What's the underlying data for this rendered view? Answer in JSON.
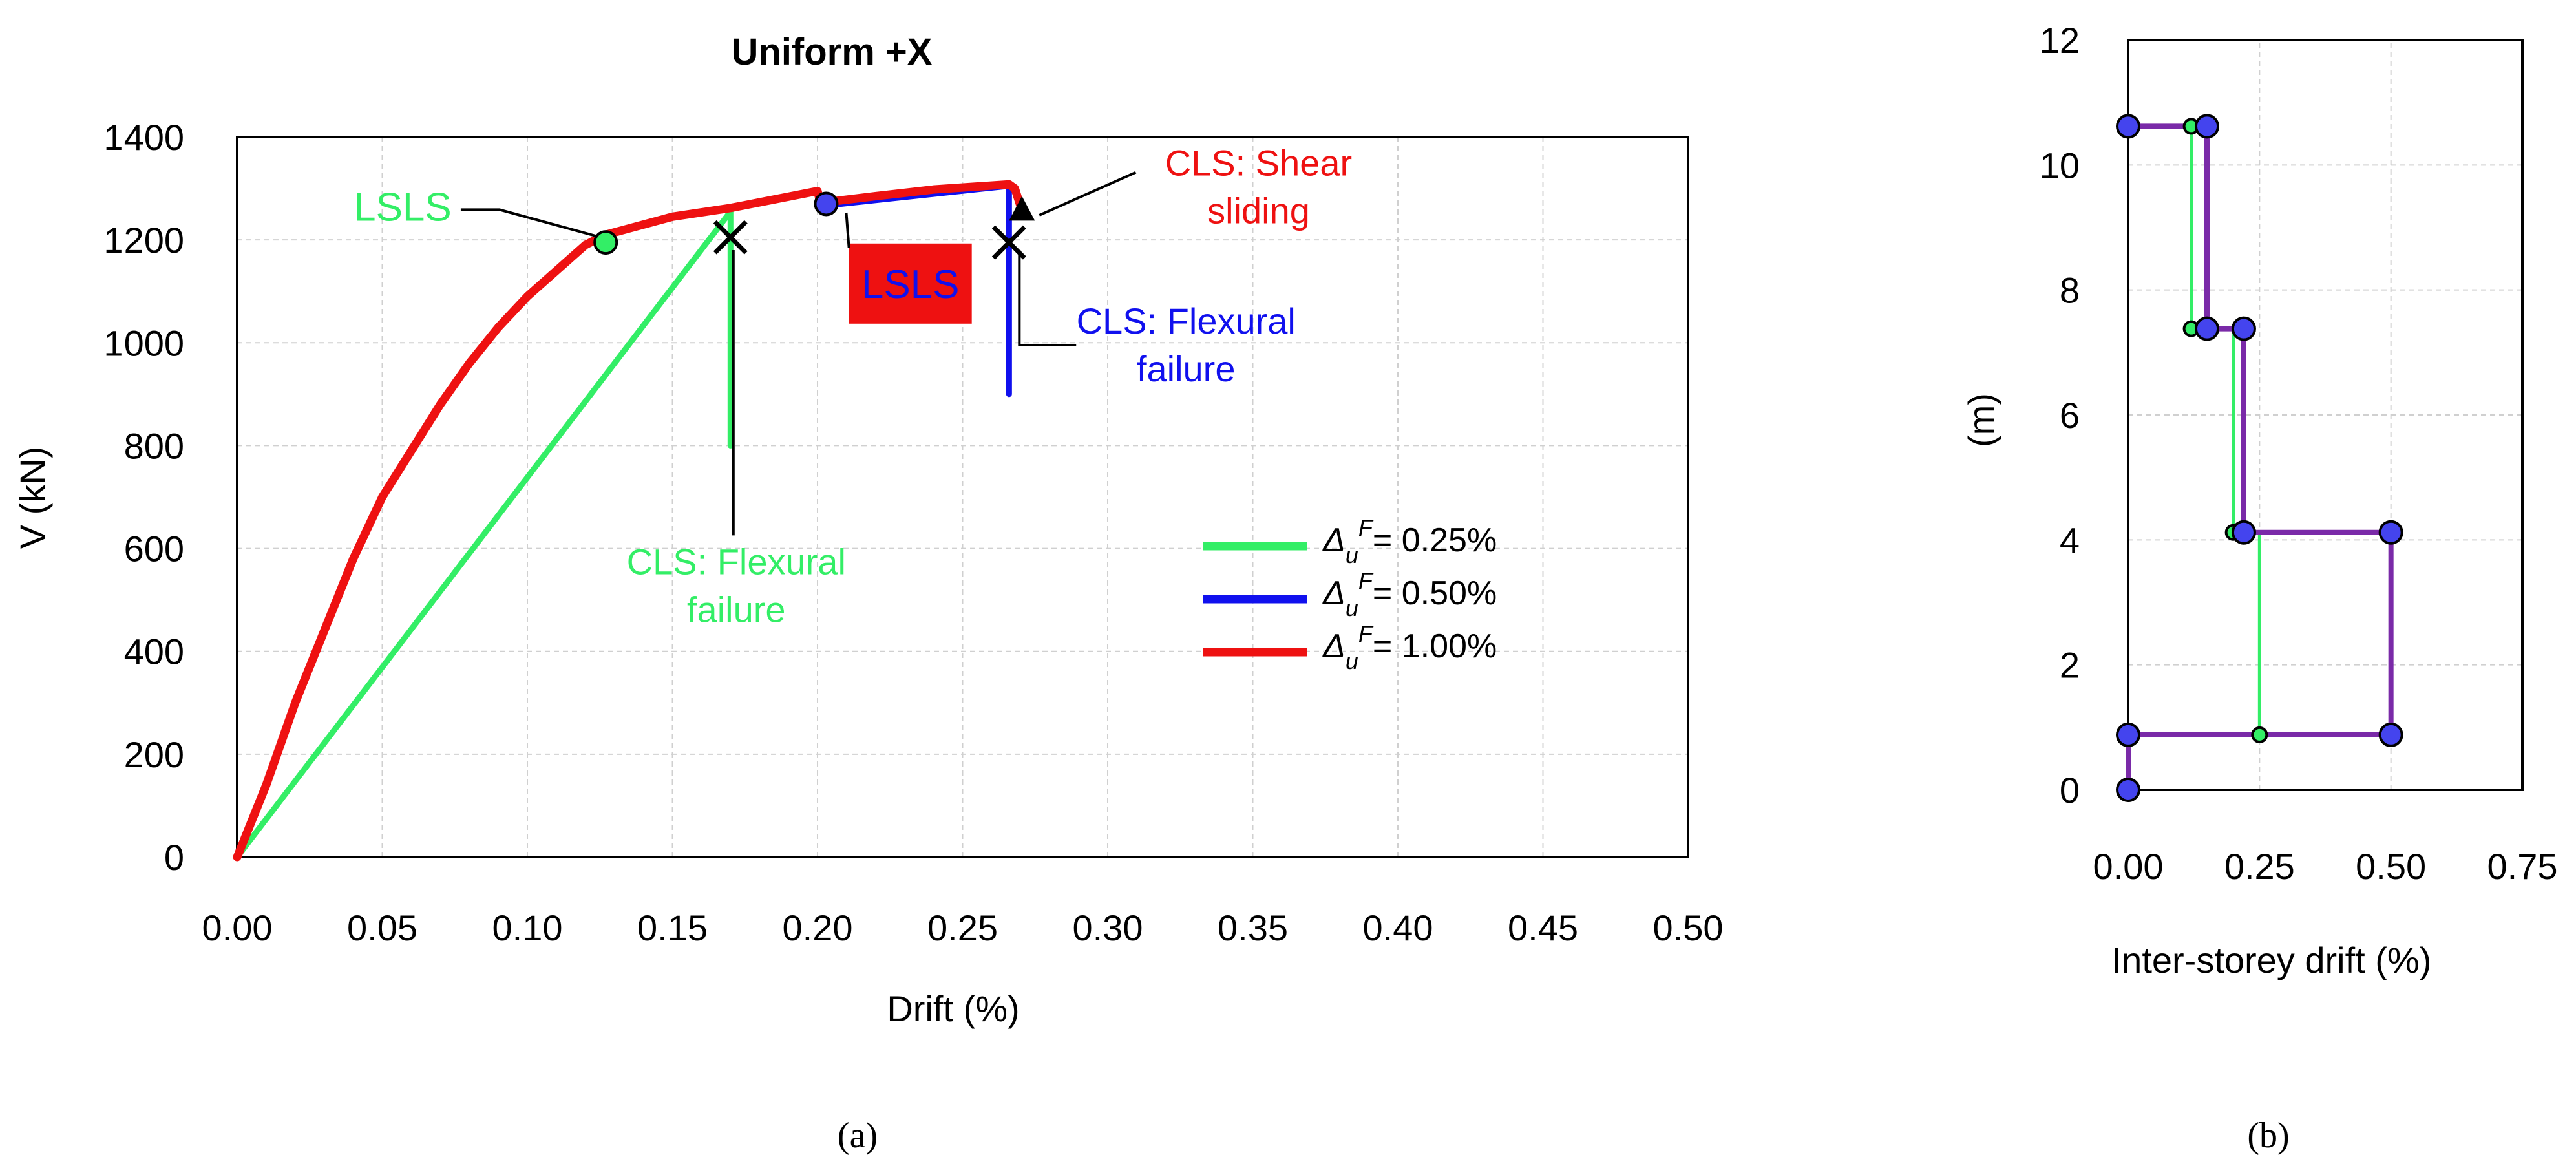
{
  "captions": {
    "a": "(a)",
    "b": "(b)"
  },
  "colors": {
    "green": "#33ee66",
    "blue": "#1010ee",
    "red": "#ee1111",
    "black": "#000000",
    "grid": "#d0d0d0",
    "purple": "#7a2aa8",
    "marker_blue": "#4444ee"
  },
  "chart_data": [
    {
      "type": "line",
      "title": "Uniform +X",
      "xlabel": "Drift (%)",
      "ylabel": "V (kN)",
      "xlim": [
        0,
        0.5
      ],
      "ylim": [
        0,
        1400
      ],
      "xticks": [
        "0.00",
        "0.05",
        "0.10",
        "0.15",
        "0.20",
        "0.25",
        "0.30",
        "0.35",
        "0.40",
        "0.45",
        "0.50"
      ],
      "yticks": [
        "0",
        "200",
        "400",
        "600",
        "800",
        "1000",
        "1200",
        "1400"
      ],
      "grid": true,
      "legend_position": "right",
      "legend": [
        {
          "symbol": "Δ",
          "sub": "u",
          "sup": "F",
          "value": "= 0.25%",
          "color": "#33ee66"
        },
        {
          "symbol": "Δ",
          "sub": "u",
          "sup": "F",
          "value": "= 0.50%",
          "color": "#1010ee"
        },
        {
          "symbol": "Δ",
          "sub": "u",
          "sup": "F",
          "value": "= 1.00%",
          "color": "#ee1111"
        }
      ],
      "series": [
        {
          "color": "#33ee66",
          "points": [
            [
              0,
              0
            ],
            [
              0.17,
              1255
            ],
            [
              0.17,
              800
            ]
          ]
        },
        {
          "color": "#1010ee",
          "points": [
            [
              0.2,
              1290
            ],
            [
              0.202,
              1272
            ],
            [
              0.205,
              1268
            ],
            [
              0.266,
              1305
            ],
            [
              0.266,
              900
            ]
          ]
        },
        {
          "color": "#ee1111",
          "points": [
            [
              0,
              0
            ],
            [
              0.01,
              140
            ],
            [
              0.02,
              300
            ],
            [
              0.03,
              440
            ],
            [
              0.04,
              580
            ],
            [
              0.05,
              700
            ],
            [
              0.06,
              790
            ],
            [
              0.07,
              880
            ],
            [
              0.08,
              960
            ],
            [
              0.09,
              1030
            ],
            [
              0.1,
              1090
            ],
            [
              0.11,
              1140
            ],
            [
              0.12,
              1190
            ],
            [
              0.127,
              1210
            ],
            [
              0.15,
              1245
            ],
            [
              0.17,
              1262
            ],
            [
              0.2,
              1295
            ],
            [
              0.201,
              1272
            ],
            [
              0.22,
              1285
            ],
            [
              0.24,
              1298
            ],
            [
              0.266,
              1308
            ],
            [
              0.268,
              1300
            ],
            [
              0.27,
              1265
            ]
          ]
        }
      ],
      "markers": [
        {
          "x": 0.127,
          "y": 1195,
          "shape": "circle",
          "color": "#33ee66"
        },
        {
          "x": 0.203,
          "y": 1270,
          "shape": "circle",
          "color": "#4444ee"
        },
        {
          "x": 0.17,
          "y": 1205,
          "shape": "cross"
        },
        {
          "x": 0.266,
          "y": 1195,
          "shape": "cross"
        },
        {
          "x": 0.27,
          "y": 1255,
          "shape": "triangle"
        }
      ],
      "annotations": [
        {
          "text": "LSLS",
          "color": "#33ee66",
          "x": 0.057,
          "y": 1265,
          "target": [
            0.127,
            1195
          ]
        },
        {
          "text": "LSLS",
          "color": "#1010ee",
          "x": 0.232,
          "y": 1115,
          "box": "#ee1111",
          "target": [
            0.205,
            1268
          ]
        },
        {
          "lines": [
            "CLS: Shear",
            "sliding"
          ],
          "color": "#ee1111",
          "x": 0.352,
          "y": 1325,
          "target": [
            0.272,
            1248
          ]
        },
        {
          "lines": [
            "CLS: Flexural",
            "failure"
          ],
          "color": "#1010ee",
          "x": 0.327,
          "y": 1018,
          "target": [
            0.266,
            1000
          ]
        },
        {
          "lines": [
            "CLS: Flexural",
            "failure"
          ],
          "color": "#33ee66",
          "x": 0.172,
          "y": 550,
          "target": [
            0.171,
            800
          ]
        }
      ]
    },
    {
      "type": "line",
      "xlabel": "Inter-storey drift (%)",
      "ylabel": "(m)",
      "xlim": [
        0,
        0.75
      ],
      "ylim": [
        0,
        12
      ],
      "xticks": [
        "0.00",
        "0.25",
        "0.50",
        "0.75"
      ],
      "yticks": [
        "0",
        "2",
        "4",
        "6",
        "8",
        "10",
        "12"
      ],
      "grid": true,
      "series": [
        {
          "color": "#33ee66",
          "points": [
            [
              0,
              0
            ],
            [
              0,
              0.88
            ],
            [
              0.25,
              0.88
            ],
            [
              0.25,
              4.12
            ],
            [
              0.2,
              4.12
            ],
            [
              0.2,
              7.38
            ],
            [
              0.12,
              7.38
            ],
            [
              0.12,
              10.62
            ],
            [
              0,
              10.62
            ]
          ],
          "markers": [
            [
              0,
              0
            ],
            [
              0,
              0.88
            ],
            [
              0.25,
              0.88
            ],
            [
              0.2,
              4.12
            ],
            [
              0.12,
              7.38
            ],
            [
              0.12,
              10.62
            ],
            [
              0,
              10.62
            ]
          ]
        },
        {
          "color": "#7a2aa8",
          "points": [
            [
              0,
              0
            ],
            [
              0,
              0.88
            ],
            [
              0.5,
              0.88
            ],
            [
              0.5,
              4.12
            ],
            [
              0.22,
              4.12
            ],
            [
              0.22,
              7.38
            ],
            [
              0.15,
              7.38
            ],
            [
              0.15,
              10.62
            ],
            [
              0,
              10.62
            ]
          ],
          "markers": [
            [
              0,
              0
            ],
            [
              0,
              0.88
            ],
            [
              0.5,
              0.88
            ],
            [
              0.5,
              4.12
            ],
            [
              0.22,
              4.12
            ],
            [
              0.22,
              7.38
            ],
            [
              0.15,
              7.38
            ],
            [
              0.15,
              10.62
            ],
            [
              0,
              10.62
            ]
          ]
        }
      ]
    }
  ]
}
